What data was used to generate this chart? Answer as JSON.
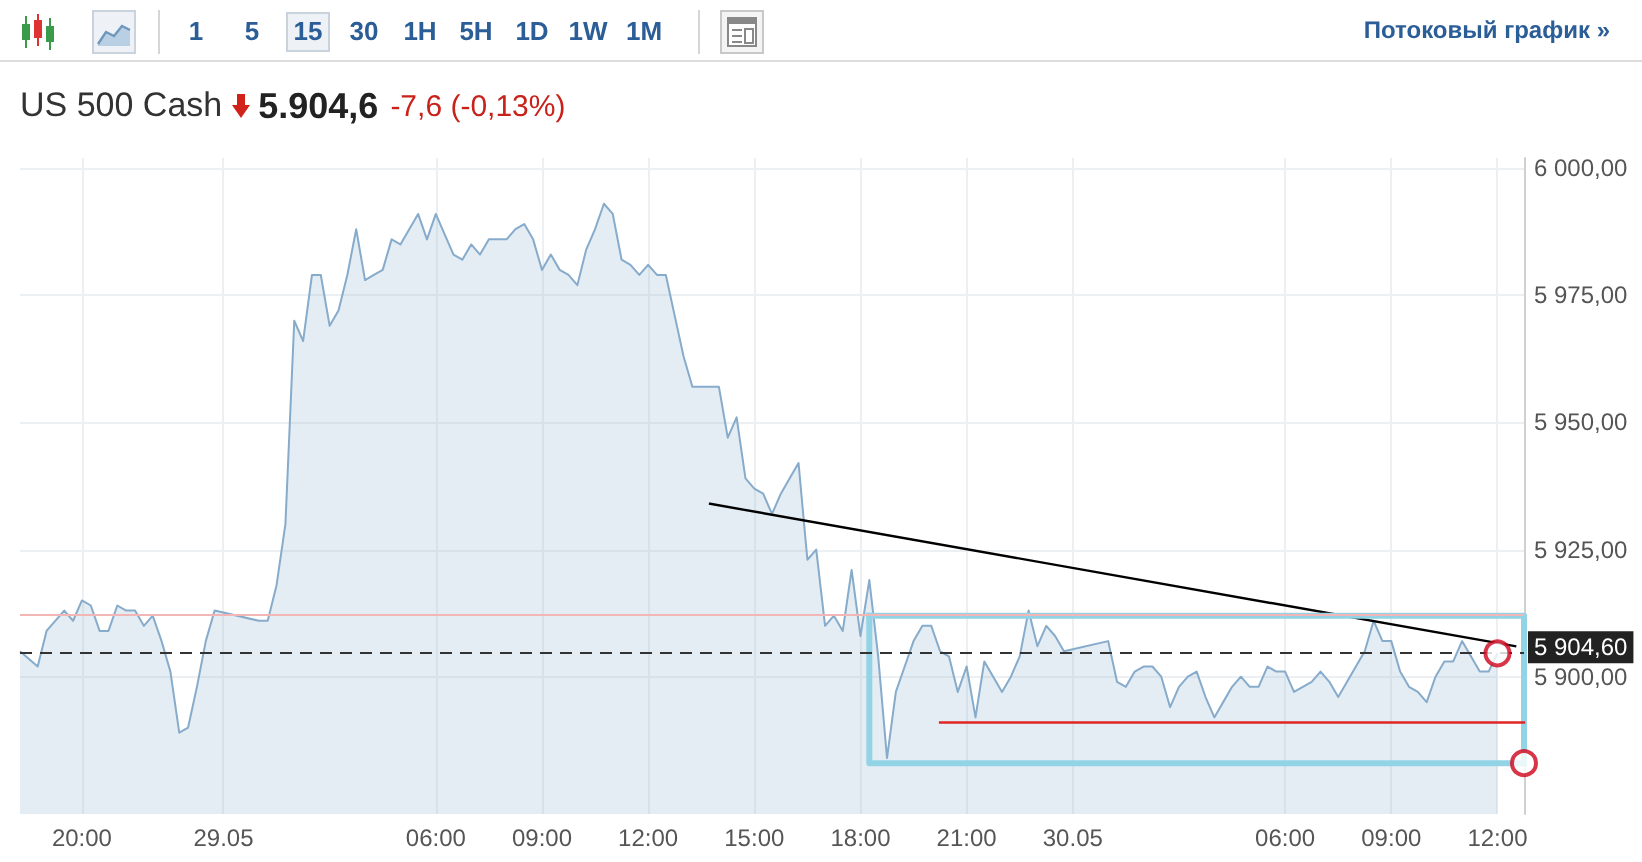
{
  "chart_data": {
    "type": "area",
    "title": "US 500 Cash",
    "subtitle": "5.904,6",
    "annotations": [
      "1",
      "5",
      "15",
      "30",
      "1H",
      "5H",
      "1D",
      "1W",
      "1M",
      "Потоковый график »",
      "-7,6 (-0,13%)"
    ],
    "series": [
      {
        "color": "#86abcb",
        "x": [
          "--05-28T18:15",
          "--05-28T18:45",
          "--05-28T19:00",
          "--05-28T19:30",
          "--05-28T19:45",
          "--05-28T20:00",
          "--05-28T20:15",
          "--05-28T20:30",
          "--05-28T20:45",
          "--05-28T21:00",
          "--05-28T21:15",
          "--05-28T21:30",
          "--05-28T21:45",
          "--05-28T22:00",
          "--05-28T22:15",
          "--05-28T22:30",
          "--05-28T22:45",
          "--05-28T23:00",
          "--05-28T23:15",
          "--05-28T23:30",
          "--05-28T23:45",
          "--05-29T01:00",
          "--05-29T01:15",
          "--05-29T01:30",
          "--05-29T01:45",
          "--05-29T02:00",
          "--05-29T02:15",
          "--05-29T02:30",
          "--05-29T02:45",
          "--05-29T03:00",
          "--05-29T03:15",
          "--05-29T03:30",
          "--05-29T03:45",
          "--05-29T04:00",
          "--05-29T04:15",
          "--05-29T04:30",
          "--05-29T04:45",
          "--05-29T05:00",
          "--05-29T05:15",
          "--05-29T05:30",
          "--05-29T05:45",
          "--05-29T06:00",
          "--05-29T06:15",
          "--05-29T06:30",
          "--05-29T06:45",
          "--05-29T07:00",
          "--05-29T07:15",
          "--05-29T07:30",
          "--05-29T07:45",
          "--05-29T08:00",
          "--05-29T08:15",
          "--05-29T08:30",
          "--05-29T08:45",
          "--05-29T09:00",
          "--05-29T09:15",
          "--05-29T09:30",
          "--05-29T09:45",
          "--05-29T10:00",
          "--05-29T10:15",
          "--05-29T10:30",
          "--05-29T10:45",
          "--05-29T11:00",
          "--05-29T11:15",
          "--05-29T11:30",
          "--05-29T11:45",
          "--05-29T12:00",
          "--05-29T12:15",
          "--05-29T12:30",
          "--05-29T12:45",
          "--05-29T13:00",
          "--05-29T13:15",
          "--05-29T13:30",
          "--05-29T13:45",
          "--05-29T14:00",
          "--05-29T14:15",
          "--05-29T14:30",
          "--05-29T14:45",
          "--05-29T15:00",
          "--05-29T15:15",
          "--05-29T15:30",
          "--05-29T15:45",
          "--05-29T16:00",
          "--05-29T16:15",
          "--05-29T16:30",
          "--05-29T16:45",
          "--05-29T17:00",
          "--05-29T17:15",
          "--05-29T17:30",
          "--05-29T17:45",
          "--05-29T18:00",
          "--05-29T18:15",
          "--05-29T18:30",
          "--05-29T18:45",
          "--05-29T19:00",
          "--05-29T19:15",
          "--05-29T19:30",
          "--05-29T19:45",
          "--05-29T20:00",
          "--05-29T20:15",
          "--05-29T20:30",
          "--05-29T20:45",
          "--05-29T21:00",
          "--05-29T21:15",
          "--05-29T21:30",
          "--05-29T21:45",
          "--05-29T22:00",
          "--05-29T22:15",
          "--05-29T22:30",
          "--05-29T22:45",
          "--05-29T23:00",
          "--05-29T23:15",
          "--05-29T23:30",
          "--05-29T23:45",
          "--05-30T01:00",
          "--05-30T01:15",
          "--05-30T01:30",
          "--05-30T01:45",
          "--05-30T02:00",
          "--05-30T02:15",
          "--05-30T02:30",
          "--05-30T02:45",
          "--05-30T03:00",
          "--05-30T03:15",
          "--05-30T03:30",
          "--05-30T03:45",
          "--05-30T04:00",
          "--05-30T04:15",
          "--05-30T04:30",
          "--05-30T04:45",
          "--05-30T05:00",
          "--05-30T05:15",
          "--05-30T05:30",
          "--05-30T05:45",
          "--05-30T06:00",
          "--05-30T06:15",
          "--05-30T06:30",
          "--05-30T06:45",
          "--05-30T07:00",
          "--05-30T07:15",
          "--05-30T07:30",
          "--05-30T07:45",
          "--05-30T08:00",
          "--05-30T08:15",
          "--05-30T08:30",
          "--05-30T08:45",
          "--05-30T09:00",
          "--05-30T09:15",
          "--05-30T09:30",
          "--05-30T09:45",
          "--05-30T10:00",
          "--05-30T10:15",
          "--05-30T10:30",
          "--05-30T10:45",
          "--05-30T11:00",
          "--05-30T11:15",
          "--05-30T11:30",
          "--05-30T11:45",
          "--05-30T12:00"
        ],
        "values": [
          5905,
          5902,
          5909,
          5913,
          5911,
          5915,
          5914,
          5909,
          5909,
          5914,
          5913,
          5913,
          5910,
          5912,
          5907,
          5901,
          5889,
          5890,
          5898,
          5907,
          5913,
          5911,
          5911,
          5918,
          5930,
          5970,
          5966,
          5979,
          5979,
          5969,
          5972,
          5979,
          5988,
          5978,
          5979,
          5980,
          5986,
          5985,
          5988,
          5991,
          5986,
          5991,
          5987,
          5983,
          5982,
          5985,
          5983,
          5986,
          5986,
          5986,
          5988,
          5989,
          5986,
          5980,
          5983,
          5980,
          5979,
          5977,
          5984,
          5988,
          5993,
          5991,
          5982,
          5981,
          5979,
          5981,
          5979,
          5979,
          5971,
          5963,
          5957,
          5957,
          5957,
          5957,
          5947,
          5951,
          5939,
          5937,
          5936,
          5932,
          5936,
          5939,
          5942,
          5923,
          5925,
          5910,
          5912,
          5909,
          5921,
          5908,
          5919,
          5904,
          5884,
          5897,
          5902,
          5907,
          5910,
          5910,
          5905,
          5904,
          5897,
          5902,
          5892,
          5903,
          5900,
          5897,
          5900,
          5904,
          5913,
          5906,
          5910,
          5908,
          5905,
          5907,
          5899,
          5898,
          5901,
          5902,
          5902,
          5900,
          5894,
          5898,
          5900,
          5901,
          5896,
          5892,
          5895,
          5898,
          5900,
          5898,
          5898,
          5902,
          5901,
          5901,
          5897,
          5898,
          5899,
          5901,
          5899,
          5896,
          5899,
          5902,
          5905,
          5911,
          5907,
          5907,
          5901,
          5898,
          5897,
          5895,
          5900,
          5903,
          5903,
          5907,
          5904,
          5901,
          5901,
          5904.6
        ]
      },
      {
        "type": "line",
        "color": "#000000",
        "x": [
          "--05-29T13:45",
          "--05-30T12:30"
        ],
        "values": [
          5934,
          5906
        ]
      },
      {
        "type": "line",
        "color": "#93d3e6",
        "x": [
          "--05-29T18:15",
          "--05-30T12:45",
          "--05-30T12:45"
        ],
        "values": [
          5912,
          5912,
          5883
        ]
      },
      {
        "type": "line",
        "color": "#93d3e6",
        "x": [
          "--05-29T18:15",
          "--05-29T18:15",
          "--05-30T12:45"
        ],
        "values": [
          5912,
          5883,
          5883
        ]
      },
      {
        "type": "line",
        "color": "#e02424",
        "x": [
          "--05-29T20:15",
          "--05-30T12:45"
        ],
        "values": [
          5891,
          5891
        ]
      },
      {
        "type": "scatter",
        "color": "#d0021b",
        "marker": "circle",
        "x": [
          "--05-30T12:00"
        ],
        "values": [
          5904.6
        ]
      },
      {
        "type": "scatter",
        "color": "#d0021b",
        "marker": "circle",
        "x": [
          "--05-30T12:45"
        ],
        "values": [
          5883
        ]
      }
    ],
    "xlim": [
      "--05-28T18:15",
      "--05-30T12:45"
    ],
    "xticks": [
      {
        "value": "--05-28T20:00",
        "label": "20:00"
      },
      {
        "value": "--05-29T00:00",
        "label": "29.05"
      },
      {
        "value": "--05-29T06:00",
        "label": "06:00"
      },
      {
        "value": "--05-29T09:00",
        "label": "09:00"
      },
      {
        "value": "--05-29T12:00",
        "label": "12:00"
      },
      {
        "value": "--05-29T15:00",
        "label": "15:00"
      },
      {
        "value": "--05-29T18:00",
        "label": "18:00"
      },
      {
        "value": "--05-29T21:00",
        "label": "21:00"
      },
      {
        "value": "--05-30T00:00",
        "label": "30.05"
      },
      {
        "value": "--05-30T06:00",
        "label": "06:00"
      },
      {
        "value": "--05-30T09:00",
        "label": "09:00"
      },
      {
        "value": "--05-30T12:00",
        "label": "12:00"
      }
    ],
    "ylim": [
      5873,
      6002
    ],
    "yticks": [
      {
        "value": 5900,
        "label": "5 900,00"
      },
      {
        "value": 5925,
        "label": "5 925,00"
      },
      {
        "value": 5950,
        "label": "5 950,00"
      },
      {
        "value": 5975,
        "label": "5 975,00"
      },
      {
        "value": 6000,
        "label": "6 000,00"
      }
    ],
    "ref_lines": [
      {
        "axis": "y",
        "value": 5912.2,
        "color": "#f2b6b6",
        "line_style": "solid"
      },
      {
        "axis": "y",
        "value": 5904.6,
        "label": "5 904,60",
        "color": "#333333",
        "line_style": "dashed"
      }
    ],
    "grid": true
  }
}
